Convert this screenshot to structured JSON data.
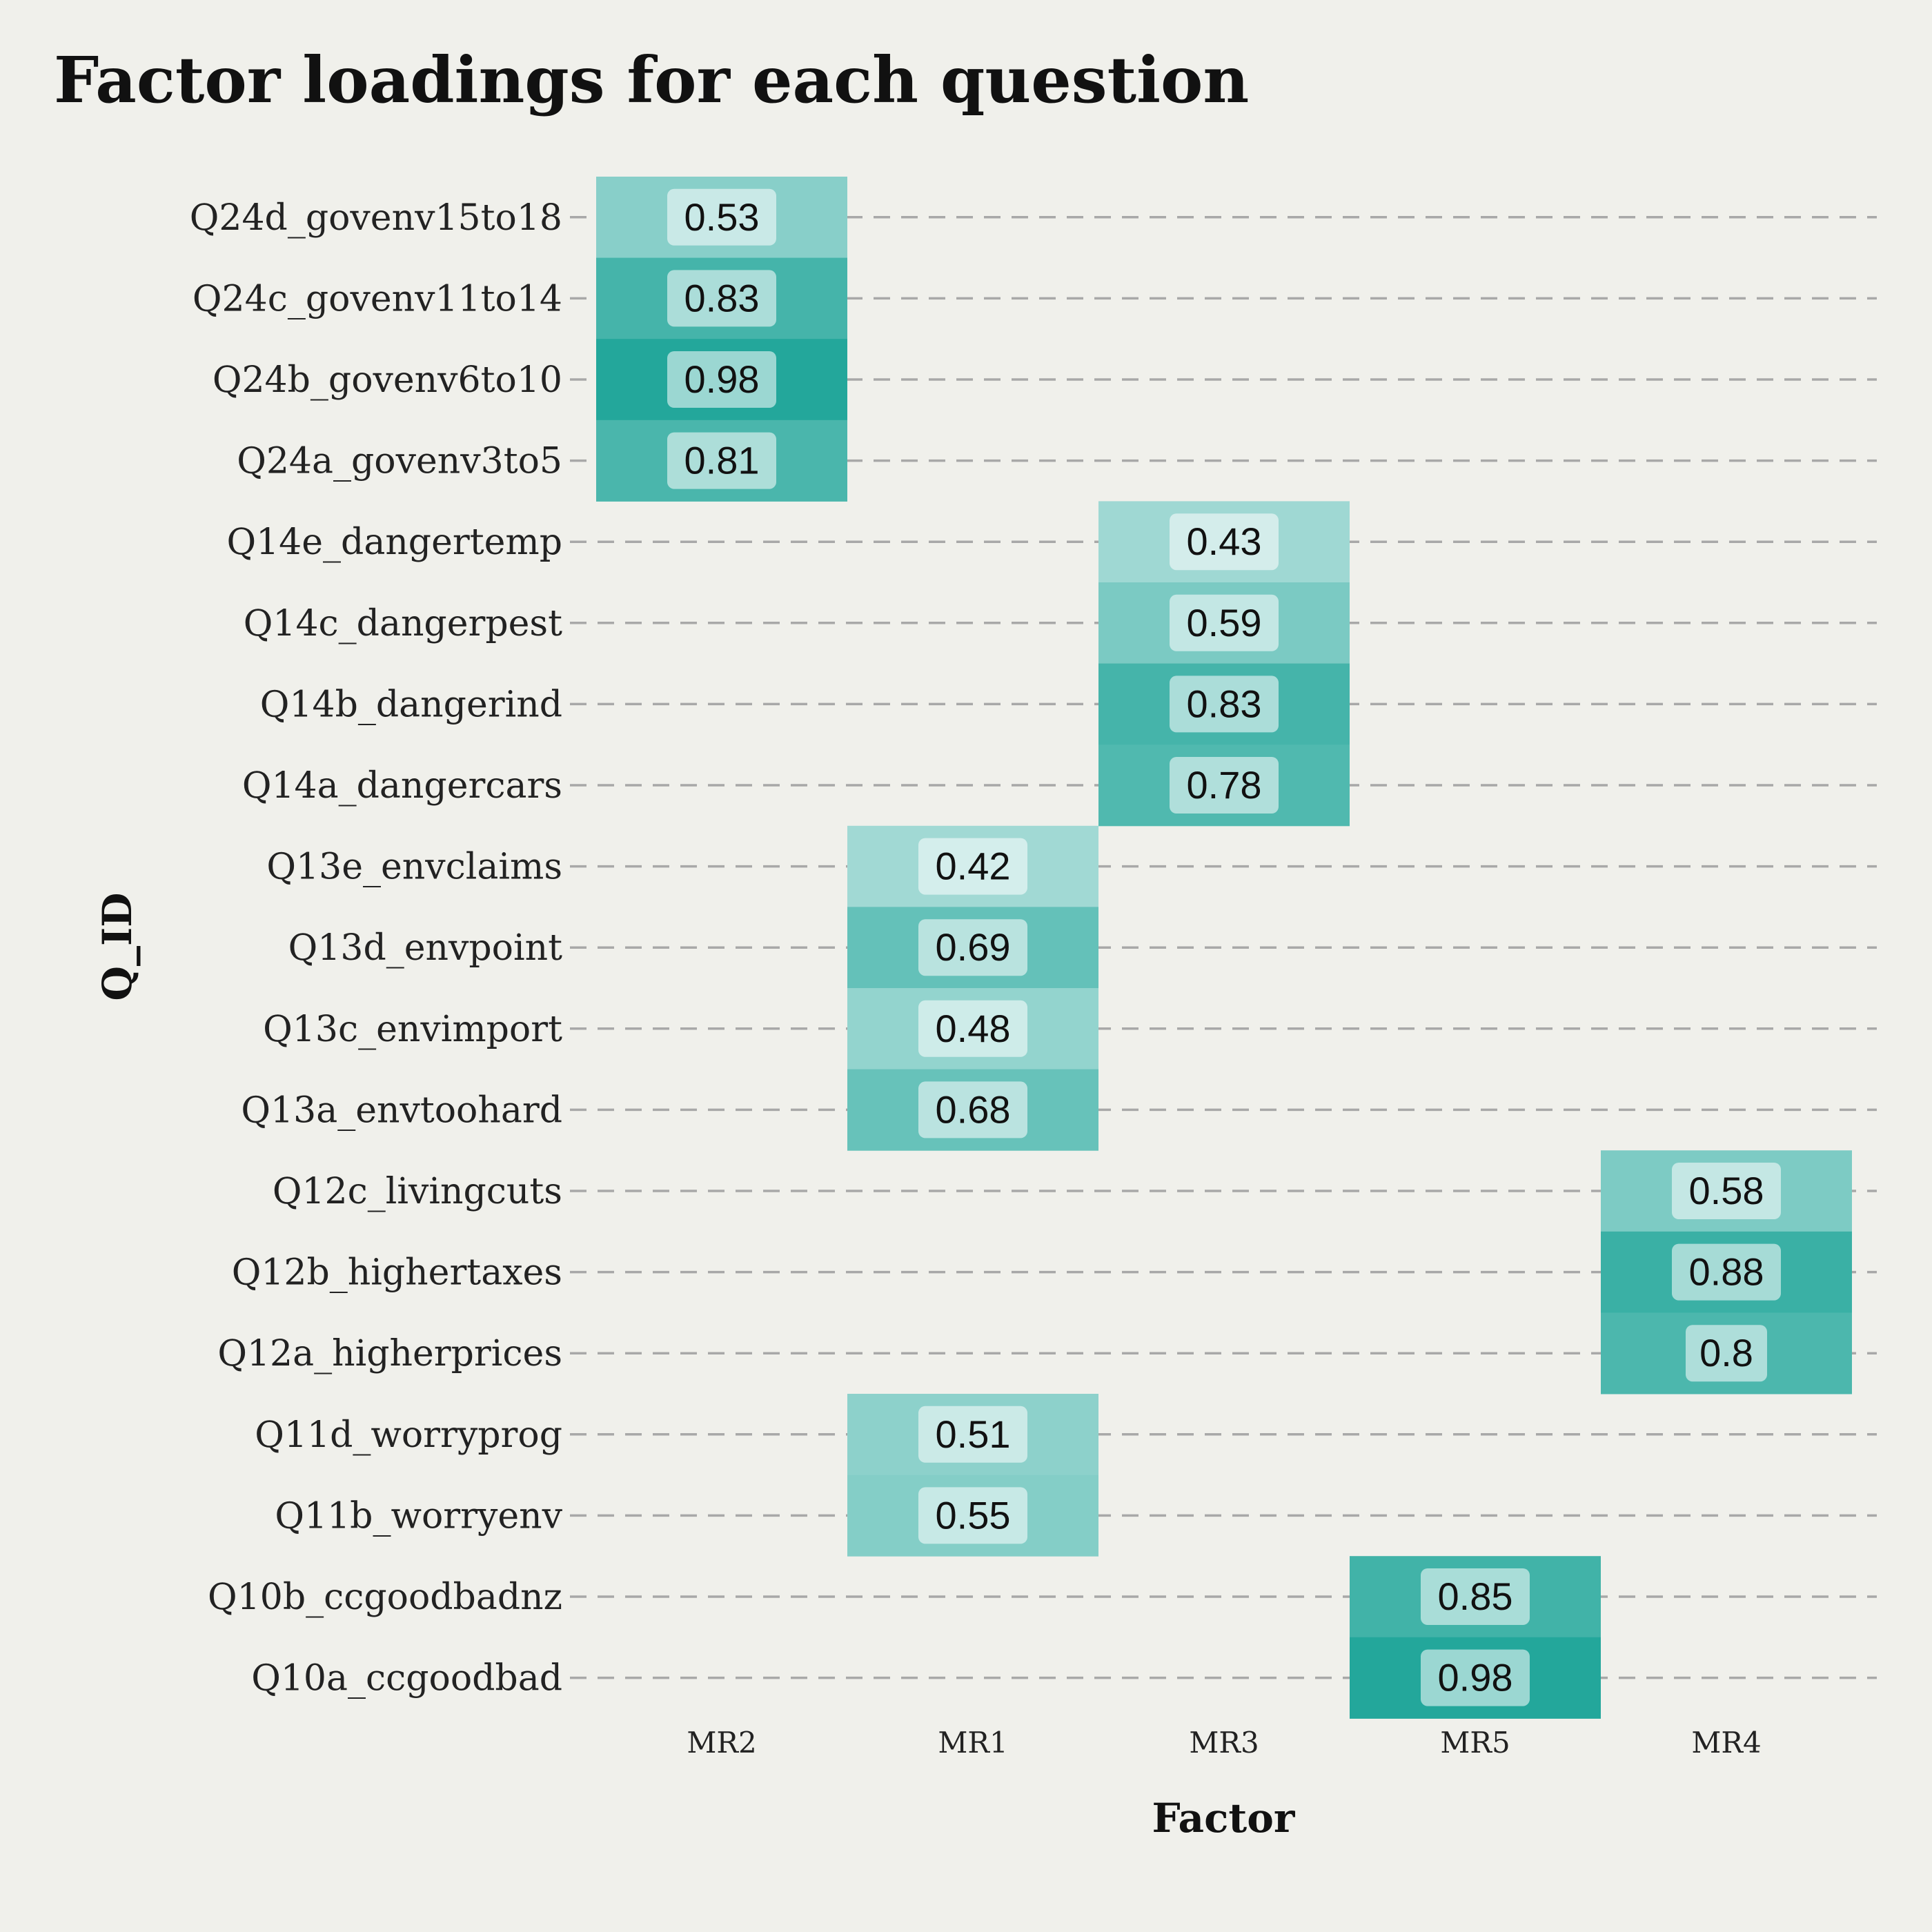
{
  "chart_data": {
    "type": "heatmap",
    "title": "Factor loadings for each question",
    "xlabel": "Factor",
    "ylabel": "Q_ID",
    "x_categories": [
      "MR2",
      "MR1",
      "MR3",
      "MR5",
      "MR4"
    ],
    "y_categories": [
      "Q24d_govenv15to18",
      "Q24c_govenv11to14",
      "Q24b_govenv6to10",
      "Q24a_govenv3to5",
      "Q14e_dangertemp",
      "Q14c_dangerpest",
      "Q14b_dangerind",
      "Q14a_dangercars",
      "Q13e_envclaims",
      "Q13d_envpoint",
      "Q13c_envimport",
      "Q13a_envtoohard",
      "Q12c_livingcuts",
      "Q12b_highertaxes",
      "Q12a_higherprices",
      "Q11d_worryprog",
      "Q11b_worryenv",
      "Q10b_ccgoodbadnz",
      "Q10a_ccgoodbad"
    ],
    "cells": [
      {
        "question": "Q24d_govenv15to18",
        "factor": "MR2",
        "value": 0.53,
        "label": "0.53"
      },
      {
        "question": "Q24c_govenv11to14",
        "factor": "MR2",
        "value": 0.83,
        "label": "0.83"
      },
      {
        "question": "Q24b_govenv6to10",
        "factor": "MR2",
        "value": 0.98,
        "label": "0.98"
      },
      {
        "question": "Q24a_govenv3to5",
        "factor": "MR2",
        "value": 0.81,
        "label": "0.81"
      },
      {
        "question": "Q14e_dangertemp",
        "factor": "MR3",
        "value": 0.43,
        "label": "0.43"
      },
      {
        "question": "Q14c_dangerpest",
        "factor": "MR3",
        "value": 0.59,
        "label": "0.59"
      },
      {
        "question": "Q14b_dangerind",
        "factor": "MR3",
        "value": 0.83,
        "label": "0.83"
      },
      {
        "question": "Q14a_dangercars",
        "factor": "MR3",
        "value": 0.78,
        "label": "0.78"
      },
      {
        "question": "Q13e_envclaims",
        "factor": "MR1",
        "value": 0.42,
        "label": "0.42"
      },
      {
        "question": "Q13d_envpoint",
        "factor": "MR1",
        "value": 0.69,
        "label": "0.69"
      },
      {
        "question": "Q13c_envimport",
        "factor": "MR1",
        "value": 0.48,
        "label": "0.48"
      },
      {
        "question": "Q13a_envtoohard",
        "factor": "MR1",
        "value": 0.68,
        "label": "0.68"
      },
      {
        "question": "Q12c_livingcuts",
        "factor": "MR4",
        "value": 0.58,
        "label": "0.58"
      },
      {
        "question": "Q12b_highertaxes",
        "factor": "MR4",
        "value": 0.88,
        "label": "0.88"
      },
      {
        "question": "Q12a_higherprices",
        "factor": "MR4",
        "value": 0.8,
        "label": "0.8"
      },
      {
        "question": "Q11d_worryprog",
        "factor": "MR1",
        "value": 0.51,
        "label": "0.51"
      },
      {
        "question": "Q11b_worryenv",
        "factor": "MR1",
        "value": 0.55,
        "label": "0.55"
      },
      {
        "question": "Q10b_ccgoodbadnz",
        "factor": "MR5",
        "value": 0.85,
        "label": "0.85"
      },
      {
        "question": "Q10a_ccgoodbad",
        "factor": "MR5",
        "value": 0.98,
        "label": "0.98"
      }
    ],
    "color_low": "#ffffff",
    "color_high": "#1fa599",
    "grid": "dashed horizontal",
    "legend": "none"
  }
}
